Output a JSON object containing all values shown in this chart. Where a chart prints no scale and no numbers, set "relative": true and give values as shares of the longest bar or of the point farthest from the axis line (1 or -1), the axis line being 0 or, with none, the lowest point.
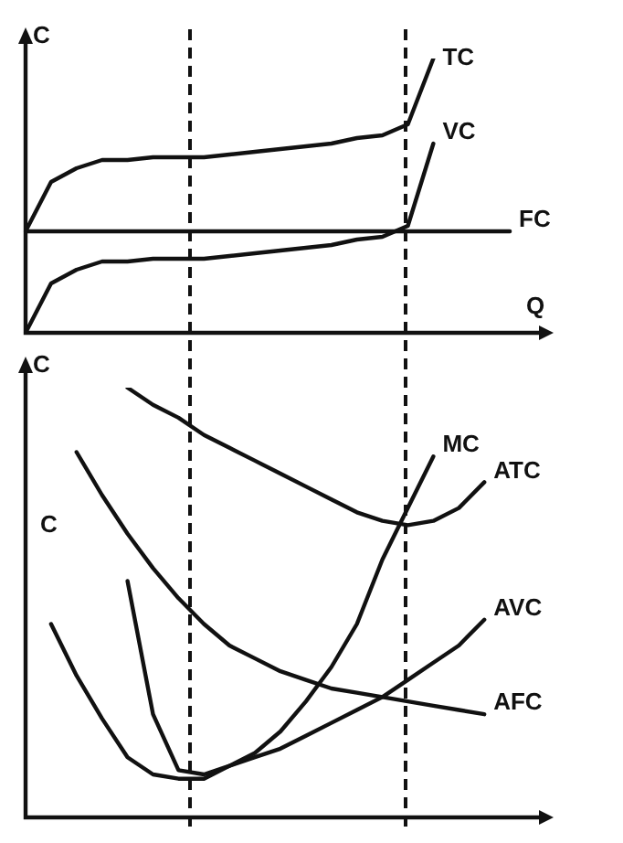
{
  "chart_data": [
    {
      "type": "line",
      "relative": true,
      "xlabel": "Q",
      "ylabel": "C",
      "legend": false,
      "marker": "none",
      "categories": [
        null,
        null,
        null,
        null,
        null,
        null,
        null,
        null,
        null,
        null,
        null,
        null,
        null,
        null,
        null,
        null,
        null,
        null,
        null,
        null,
        null
      ],
      "series": [
        {
          "name": "TC",
          "color": "#111111",
          "values": [
            0.37,
            0.55,
            0.6,
            0.63,
            0.63,
            0.64,
            0.64,
            0.64,
            0.65,
            0.66,
            0.67,
            0.68,
            0.69,
            0.71,
            0.72,
            0.76,
            1,
            null,
            null,
            null,
            null
          ]
        },
        {
          "name": "VC",
          "color": "#111111",
          "values": [
            0,
            0.18,
            0.23,
            0.26,
            0.26,
            0.27,
            0.27,
            0.27,
            0.28,
            0.29,
            0.3,
            0.31,
            0.32,
            0.34,
            0.35,
            0.39,
            0.69,
            null,
            null,
            null,
            null
          ]
        },
        {
          "name": "FC",
          "color": "#111111",
          "values": [
            0.37,
            0.37,
            0.37,
            0.37,
            0.37,
            0.37,
            0.37,
            0.37,
            0.37,
            0.37,
            0.37,
            0.37,
            0.37,
            0.37,
            0.37,
            0.37,
            0.37,
            0.37,
            0.37,
            0.37,
            null
          ]
        }
      ]
    },
    {
      "type": "line",
      "relative": true,
      "ylabel": "C",
      "legend": false,
      "marker": "none",
      "annotations": [
        "C"
      ],
      "categories": [
        null,
        null,
        null,
        null,
        null,
        null,
        null,
        null,
        null,
        null,
        null,
        null,
        null,
        null,
        null,
        null,
        null,
        null,
        null,
        null,
        null
      ],
      "series": [
        {
          "name": "MC",
          "color": "#111111",
          "values": [
            null,
            0.45,
            0.33,
            0.23,
            0.14,
            0.1,
            0.09,
            0.09,
            0.12,
            0.15,
            0.2,
            0.27,
            0.35,
            0.45,
            0.6,
            0.72,
            0.84,
            null,
            null,
            null,
            null
          ]
        },
        {
          "name": "ATC",
          "color": "#111111",
          "values": [
            null,
            null,
            null,
            null,
            1,
            0.96,
            0.93,
            0.89,
            0.86,
            0.83,
            0.8,
            0.77,
            0.74,
            0.71,
            0.69,
            0.68,
            0.69,
            0.72,
            0.78,
            null,
            null
          ]
        },
        {
          "name": "AVC",
          "color": "#111111",
          "values": [
            null,
            null,
            null,
            null,
            0.55,
            0.24,
            0.11,
            0.1,
            0.12,
            0.14,
            0.16,
            0.19,
            0.22,
            0.25,
            0.28,
            0.32,
            0.36,
            0.4,
            0.46,
            null,
            null
          ]
        },
        {
          "name": "AFC",
          "color": "#111111",
          "values": [
            null,
            null,
            0.85,
            0.75,
            0.66,
            0.58,
            0.51,
            0.45,
            0.4,
            0.37,
            0.34,
            0.32,
            0.3,
            0.29,
            0.28,
            0.27,
            0.26,
            0.25,
            0.24,
            null,
            null
          ]
        }
      ]
    }
  ]
}
